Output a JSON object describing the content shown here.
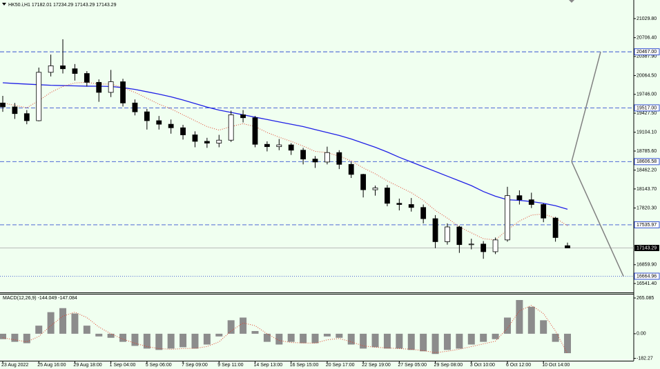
{
  "chart_data": [
    {
      "type": "candlestick",
      "title": "HK50.i,H1  17182.01 17234.29 17143.29 17143.29",
      "categories": [
        "23 Aug 2022",
        null,
        null,
        "25 Aug 16:00",
        null,
        null,
        "29 Aug 18:00",
        null,
        null,
        "1 Sep 04:00",
        null,
        null,
        "5 Sep 06:00",
        null,
        null,
        "7 Sep 09:00",
        null,
        null,
        "9 Sep 11:00",
        null,
        null,
        "14 Sep 13:00",
        null,
        null,
        "16 Sep 15:00",
        null,
        null,
        "20 Sep 17:00",
        null,
        null,
        "22 Sep 19:00",
        null,
        null,
        "27 Sep 05:00",
        null,
        null,
        "29 Sep 08:00",
        null,
        null,
        "3 Oct 10:00",
        null,
        null,
        "6 Oct 12:00",
        null,
        null,
        "10 Oct 14:00",
        null,
        null
      ],
      "open": [
        19600,
        19534,
        19420,
        19300,
        20120,
        20230,
        20180,
        20100,
        19950,
        19780,
        19960,
        19600,
        19450,
        19300,
        19240,
        19180,
        19060,
        18950,
        18920,
        18970,
        19400,
        19350,
        18900,
        18860,
        18890,
        18800,
        18650,
        18600,
        18760,
        18560,
        18390,
        18130,
        18160,
        17900,
        17880,
        17830,
        17640,
        17250,
        17500,
        17200,
        17210,
        17080,
        17280,
        18030,
        17960,
        17880,
        17650,
        17182.01
      ],
      "high": [
        19720,
        19600,
        19480,
        20200,
        20420,
        20680,
        20260,
        20140,
        20000,
        20160,
        20010,
        19660,
        19500,
        19380,
        19320,
        19230,
        19120,
        19010,
        19060,
        19470,
        19480,
        19380,
        18950,
        18990,
        18920,
        18840,
        18700,
        18860,
        18800,
        18600,
        18400,
        18200,
        18210,
        17980,
        17990,
        17880,
        17700,
        17560,
        17520,
        17300,
        17260,
        17320,
        18180,
        18120,
        18080,
        17900,
        17670,
        17234.29
      ],
      "low": [
        19450,
        19330,
        19240,
        19290,
        20050,
        20100,
        19980,
        19880,
        19620,
        19700,
        19540,
        19390,
        19150,
        19150,
        19080,
        18980,
        18850,
        18840,
        18850,
        18940,
        19270,
        18850,
        18780,
        18800,
        18720,
        18560,
        18500,
        18560,
        18480,
        18330,
        18000,
        18030,
        17850,
        17780,
        17760,
        17560,
        17140,
        17200,
        17060,
        17120,
        16960,
        17040,
        17250,
        17880,
        17820,
        17580,
        17250,
        17143.29
      ],
      "close": [
        19534,
        19420,
        19300,
        20120,
        20230,
        20180,
        20100,
        19950,
        19780,
        19960,
        19600,
        19450,
        19300,
        19240,
        19180,
        19060,
        18950,
        18920,
        18970,
        19400,
        19350,
        18900,
        18860,
        18890,
        18800,
        18650,
        18600,
        18760,
        18560,
        18390,
        18130,
        18160,
        17900,
        17880,
        17830,
        17640,
        17250,
        17500,
        17200,
        17210,
        17080,
        17280,
        18030,
        17960,
        17880,
        17650,
        17320,
        17143.29
      ],
      "lines": [
        {
          "color": "#1f1fe6",
          "style": "solid",
          "values": [
            19943,
            19930,
            19920,
            19910,
            19900,
            19895,
            19890,
            19885,
            19884,
            19880,
            19860,
            19830,
            19790,
            19750,
            19705,
            19650,
            19590,
            19530,
            19480,
            19440,
            19400,
            19360,
            19320,
            19280,
            19240,
            19200,
            19150,
            19100,
            19050,
            18990,
            18920,
            18850,
            18770,
            18680,
            18600,
            18520,
            18440,
            18360,
            18280,
            18200,
            18100,
            18020,
            17960,
            17950,
            17930,
            17900,
            17860,
            17800
          ]
        },
        {
          "color": "#e0402a",
          "style": "dotted",
          "values": [
            19600,
            19560,
            19520,
            19640,
            19780,
            19880,
            19940,
            19950,
            19920,
            19920,
            19860,
            19780,
            19680,
            19580,
            19500,
            19400,
            19300,
            19200,
            19140,
            19200,
            19250,
            19200,
            19100,
            19020,
            18950,
            18870,
            18780,
            18760,
            18700,
            18620,
            18500,
            18400,
            18280,
            18180,
            18080,
            17950,
            17780,
            17650,
            17500,
            17400,
            17300,
            17280,
            17450,
            17600,
            17700,
            17720,
            17650,
            17520
          ]
        }
      ],
      "levels": [
        {
          "value": 20467,
          "label": "20467.00",
          "style": "dashed"
        },
        {
          "value": 19517,
          "label": "19517.00",
          "style": "dashed"
        },
        {
          "value": 18606.58,
          "label": "18606.58",
          "style": "dashed"
        },
        {
          "value": 17535.97,
          "label": "17535.97",
          "style": "dashed"
        },
        {
          "value": 16664.96,
          "label": "16664.96",
          "style": "dotted"
        }
      ],
      "level_color": "#3550d0",
      "last_price": 17143.29,
      "ylim": [
        16390,
        21345
      ],
      "yticks": [
        {
          "value": 21029.8,
          "label": "21029.80"
        },
        {
          "value": 20706.4,
          "label": "20706.40"
        },
        {
          "value": 20387.9,
          "label": "20387.90"
        },
        {
          "value": 20064.5,
          "label": "20064.50"
        },
        {
          "value": 19746,
          "label": "19746.00"
        },
        {
          "value": 19427.5,
          "label": "19427.50"
        },
        {
          "value": 19104.1,
          "label": "19104.10"
        },
        {
          "value": 18785.6,
          "label": "18785.60"
        },
        {
          "value": 18462.2,
          "label": "18462.20"
        },
        {
          "value": 18143.7,
          "label": "18143.70"
        },
        {
          "value": 17820.3,
          "label": "17820.30"
        },
        {
          "value": 16859.9,
          "label": "16859.90"
        },
        {
          "value": 16541.4,
          "label": "16541.40"
        }
      ]
    },
    {
      "type": "macd",
      "title": "MACD(12,26,9) -144.049 -147.084",
      "color": "#8c8c8c",
      "values": [
        -40,
        -60,
        -70,
        60,
        160,
        190,
        150,
        60,
        -20,
        -30,
        -60,
        -90,
        -110,
        -120,
        -110,
        -100,
        -110,
        -80,
        -20,
        100,
        120,
        20,
        -60,
        -80,
        -60,
        -70,
        -70,
        -20,
        -30,
        -80,
        -110,
        -100,
        -110,
        -110,
        -120,
        -130,
        -150,
        -120,
        -110,
        -80,
        -60,
        -40,
        120,
        250,
        200,
        100,
        -60,
        -144.049
      ],
      "signal": {
        "color": "#e0402a",
        "values": [
          -30,
          -45,
          -60,
          -20,
          60,
          130,
          160,
          120,
          50,
          0,
          -40,
          -70,
          -95,
          -110,
          -115,
          -110,
          -108,
          -95,
          -60,
          20,
          80,
          60,
          0,
          -50,
          -65,
          -68,
          -70,
          -45,
          -35,
          -60,
          -90,
          -100,
          -105,
          -110,
          -115,
          -125,
          -140,
          -130,
          -115,
          -95,
          -75,
          -55,
          40,
          170,
          210,
          150,
          20,
          -147.084
        ]
      },
      "ylim": [
        -200,
        296
      ],
      "yticks": [
        265.085,
        {
          "value": 0,
          "label": "0.00"
        },
        -182.27
      ]
    }
  ]
}
